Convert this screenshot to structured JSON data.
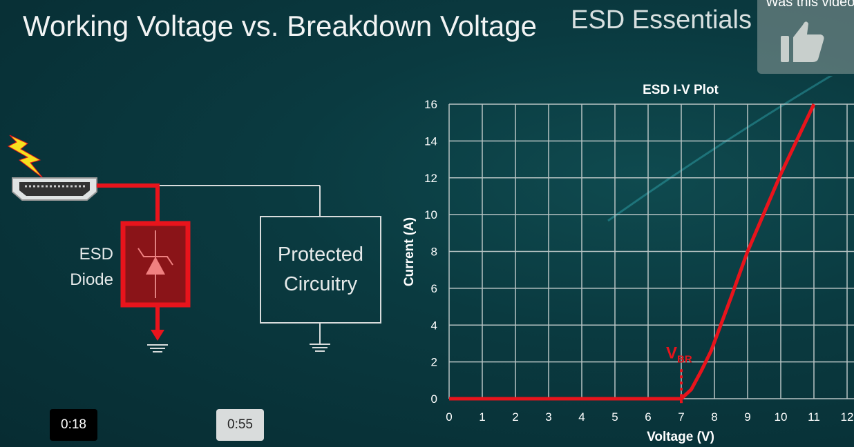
{
  "slide": {
    "title": "Working Voltage vs. Breakdown Voltage",
    "brand": "ESD Essentials",
    "diagram": {
      "diode_label_line1": "ESD",
      "diode_label_line2": "Diode",
      "circuit_label_line1": "Protected",
      "circuit_label_line2": "Circuitry"
    }
  },
  "feedback": {
    "question": "Was this video",
    "icon": "thumbs-up-icon"
  },
  "player": {
    "hover_time": "0:18",
    "preview_time": "0:55"
  },
  "colors": {
    "accent": "#e8141c",
    "grid": "#b8c4c4",
    "background": "#0a3a40"
  },
  "chart_data": {
    "type": "line",
    "title": "ESD I-V Plot",
    "xlabel": "Voltage (V)",
    "ylabel": "Current (A)",
    "xlim": [
      0,
      12
    ],
    "ylim": [
      0,
      16
    ],
    "xticks": [
      0,
      1,
      2,
      3,
      4,
      5,
      6,
      7,
      8,
      9,
      10,
      11,
      12
    ],
    "yticks": [
      0,
      2,
      4,
      6,
      8,
      10,
      12,
      14,
      16
    ],
    "grid": true,
    "series": [
      {
        "color": "#e8141c",
        "x": [
          0,
          7,
          7.3,
          7.6,
          7.9,
          8.5,
          9,
          10,
          11
        ],
        "y": [
          0,
          0,
          0.5,
          1.5,
          2.6,
          5.5,
          8,
          12.2,
          16
        ]
      }
    ],
    "annotations": [
      {
        "text": "V",
        "subscript": "BR",
        "x": 7
      }
    ]
  }
}
